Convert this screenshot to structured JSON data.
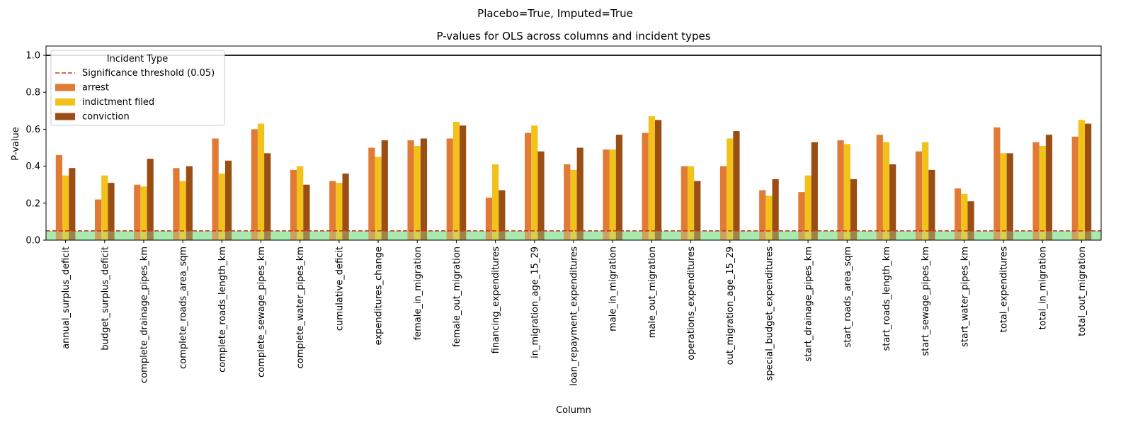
{
  "suptitle": "Placebo=True, Imputed=True",
  "chart_data": {
    "type": "bar",
    "title": "P-values for OLS across columns and incident types",
    "xlabel": "Column",
    "ylabel": "P-value",
    "ylim": [
      0,
      1.05
    ],
    "yticks": [
      "0.0",
      "0.2",
      "0.4",
      "0.6",
      "0.8",
      "1.0"
    ],
    "grid": false,
    "legend": {
      "title": "Incident Type",
      "placement": "top-left",
      "threshold_label": "Significance threshold (0.05)"
    },
    "threshold": 0.05,
    "reference_line": 1.0,
    "categories": [
      "annual_surplus_deficit",
      "budget_surplus_deficit",
      "complete_drainage_pipes_km",
      "complete_roads_area_sqm",
      "complete_roads_length_km",
      "complete_sewage_pipes_km",
      "complete_water_pipes_km",
      "cumulative_deficit",
      "expenditures_change",
      "female_in_migration",
      "female_out_migration",
      "financing_expenditures",
      "in_migration_age_15_29",
      "loan_repayment_expenditures",
      "male_in_migration",
      "male_out_migration",
      "operations_expenditures",
      "out_migration_age_15_29",
      "special_budget_expenditures",
      "start_drainage_pipes_km",
      "start_roads_area_sqm",
      "start_roads_length_km",
      "start_sewage_pipes_km",
      "start_water_pipes_km",
      "total_expenditures",
      "total_in_migration",
      "total_out_migration"
    ],
    "series": [
      {
        "name": "arrest",
        "color": "#E07A34",
        "values": [
          0.46,
          0.22,
          0.3,
          0.39,
          0.55,
          0.6,
          0.38,
          0.32,
          0.5,
          0.54,
          0.55,
          0.23,
          0.58,
          0.41,
          0.49,
          0.58,
          0.4,
          0.4,
          0.27,
          0.26,
          0.54,
          0.57,
          0.48,
          0.28,
          0.61,
          0.53,
          0.56
        ]
      },
      {
        "name": "indictment filed",
        "color": "#F2C11A",
        "values": [
          0.35,
          0.35,
          0.29,
          0.32,
          0.36,
          0.63,
          0.4,
          0.31,
          0.45,
          0.51,
          0.64,
          0.41,
          0.62,
          0.38,
          0.49,
          0.67,
          0.4,
          0.55,
          0.24,
          0.35,
          0.52,
          0.53,
          0.53,
          0.25,
          0.47,
          0.51,
          0.65
        ]
      },
      {
        "name": "conviction",
        "color": "#9A4E14",
        "values": [
          0.39,
          0.31,
          0.44,
          0.4,
          0.43,
          0.47,
          0.3,
          0.36,
          0.54,
          0.55,
          0.62,
          0.27,
          0.48,
          0.5,
          0.57,
          0.65,
          0.32,
          0.59,
          0.33,
          0.53,
          0.33,
          0.41,
          0.38,
          0.21,
          0.47,
          0.57,
          0.63
        ]
      }
    ],
    "colors": {
      "threshold_line": "#C0392B",
      "significance_band": "#A8EBB0",
      "reference_line": "#000000"
    }
  }
}
